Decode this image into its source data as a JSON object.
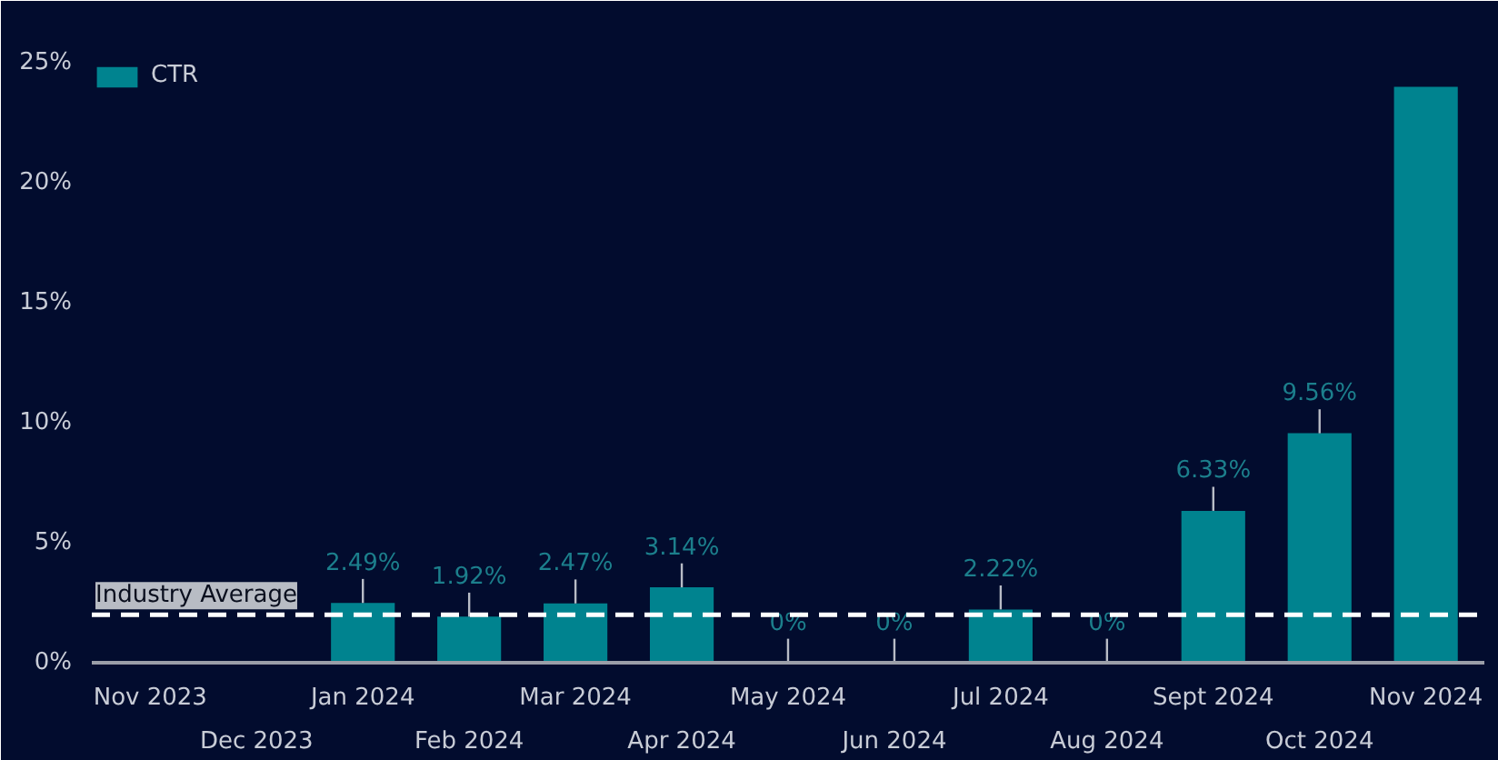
{
  "chart_data": {
    "type": "bar",
    "categories": [
      "Nov 2023",
      "Dec 2023",
      "Jan 2024",
      "Feb 2024",
      "Mar 2024",
      "Apr 2024",
      "May 2024",
      "Jun 2024",
      "Jul 2024",
      "Aug 2024",
      "Sept 2024",
      "Oct 2024",
      "Nov 2024"
    ],
    "series": [
      {
        "name": "CTR",
        "color": "#00838f",
        "values": [
          null,
          null,
          2.49,
          1.92,
          2.47,
          3.14,
          0,
          0,
          2.22,
          0,
          6.33,
          9.56,
          24.0
        ],
        "value_labels": [
          null,
          null,
          "2.49%",
          "1.92%",
          "2.47%",
          "3.14%",
          "0%",
          "0%",
          "2.22%",
          "0%",
          "6.33%",
          "9.56%",
          null
        ]
      }
    ],
    "ylim": [
      0,
      25
    ],
    "yticks": [
      {
        "value": 0,
        "label": "0%"
      },
      {
        "value": 5,
        "label": "5%"
      },
      {
        "value": 10,
        "label": "10%"
      },
      {
        "value": 15,
        "label": "15%"
      },
      {
        "value": 20,
        "label": "20%"
      },
      {
        "value": 25,
        "label": "25%"
      }
    ],
    "ref_lines": [
      {
        "axis": "y",
        "value": 2,
        "label": "Industry Average",
        "color": "#ffffff",
        "line_style": "dashed"
      }
    ],
    "legend": "top left",
    "grid": false
  }
}
